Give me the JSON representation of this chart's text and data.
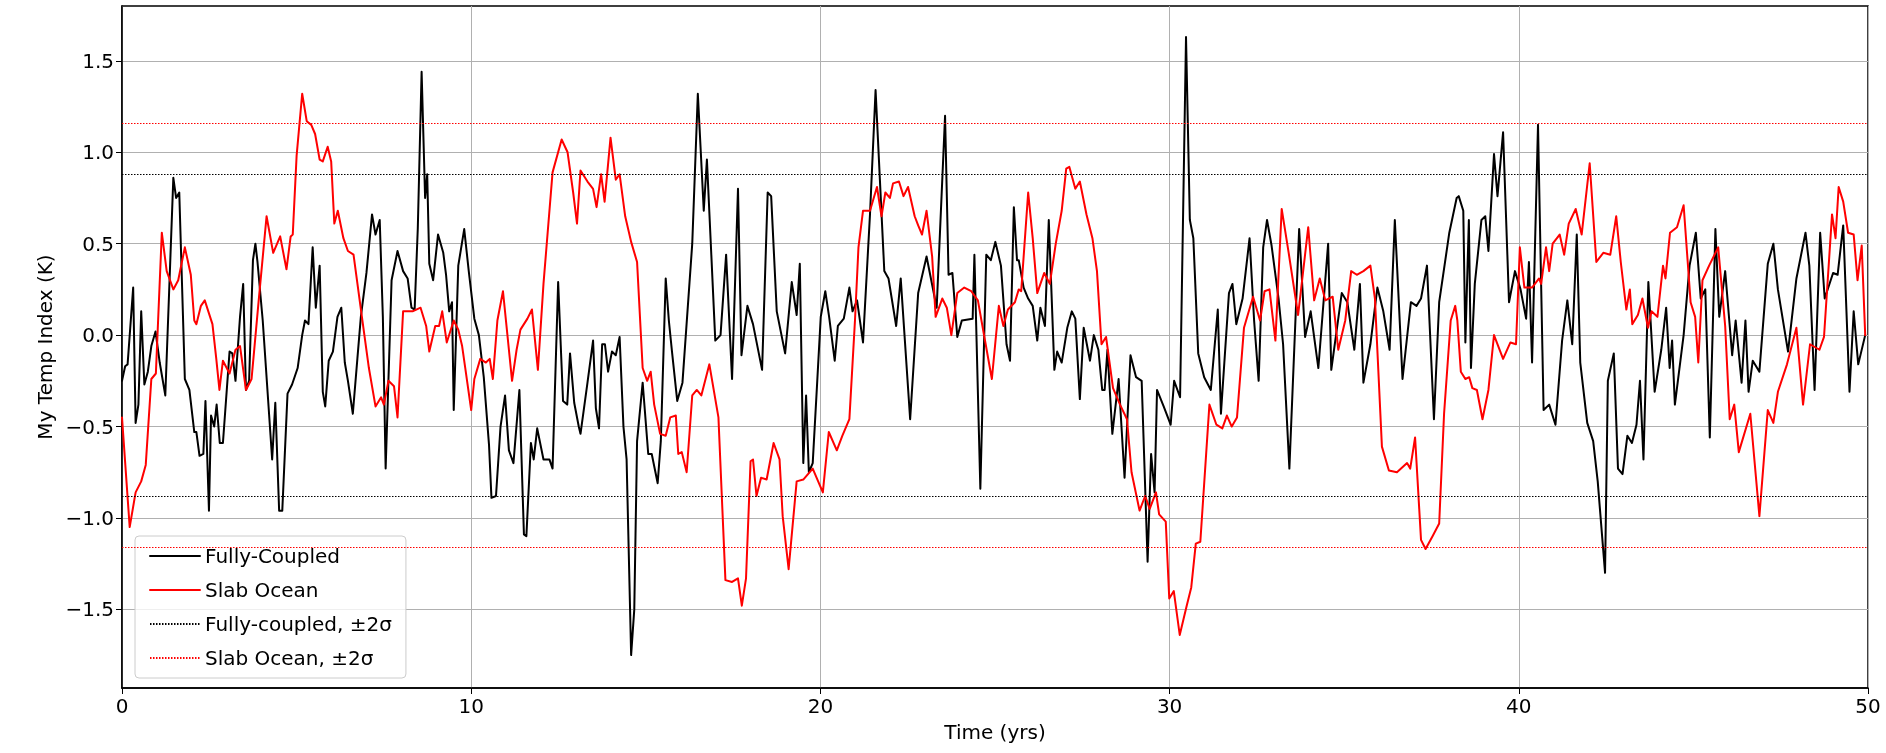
{
  "chart_data": {
    "type": "line",
    "xlabel": "Time (yrs)",
    "ylabel": "My Temp Index (K)",
    "xlim": [
      0,
      50
    ],
    "xticks": [
      0,
      10,
      20,
      30,
      40,
      50
    ],
    "ylim": [
      -1.93,
      1.8
    ],
    "yticks": [
      {
        "value": -1.5,
        "label": "−1.5"
      },
      {
        "value": -1.0,
        "label": "−1.0"
      },
      {
        "value": -0.5,
        "label": "−0.5"
      },
      {
        "value": 0,
        "label": "0.0"
      },
      {
        "value": 0.5,
        "label": "0.5"
      },
      {
        "value": 1.0,
        "label": "1.0"
      },
      {
        "value": 1.5,
        "label": "1.5"
      }
    ],
    "grid": true,
    "legend": "bottom left",
    "marker": "none",
    "line_style": "solid",
    "series": [
      {
        "name": "Fully-Coupled",
        "color": "#000000",
        "x": [
          0,
          0.09,
          0.16,
          0.32,
          0.39,
          0.47,
          0.55,
          0.64,
          0.74,
          0.84,
          0.96,
          1.08,
          1.24,
          1.47,
          1.55,
          1.64,
          1.8,
          1.93,
          2.07,
          2.13,
          2.22,
          2.33,
          2.39,
          2.49,
          2.55,
          2.64,
          2.71,
          2.8,
          2.89,
          3.08,
          3.16,
          3.25,
          3.38,
          3.47,
          3.55,
          3.64,
          3.75,
          3.82,
          3.88,
          4.03,
          4.3,
          4.39,
          4.5,
          4.59,
          4.74,
          4.87,
          5.03,
          5.16,
          5.24,
          5.34,
          5.46,
          5.55,
          5.66,
          5.75,
          5.82,
          5.92,
          6.04,
          6.17,
          6.28,
          6.38,
          6.47,
          6.61,
          6.74,
          6.84,
          7,
          7.16,
          7.26,
          7.38,
          7.47,
          7.55,
          7.72,
          7.89,
          8.05,
          8.18,
          8.29,
          8.38,
          8.47,
          8.58,
          8.68,
          8.74,
          8.8,
          8.91,
          9.05,
          9.2,
          9.28,
          9.37,
          9.45,
          9.5,
          9.63,
          9.8,
          9.93,
          10.09,
          10.22,
          10.36,
          10.51,
          10.58,
          10.71,
          10.84,
          10.97,
          11.08,
          11.21,
          11.38,
          11.51,
          11.58,
          11.71,
          11.79,
          11.89,
          12.07,
          12.24,
          12.33,
          12.49,
          12.63,
          12.75,
          12.83,
          12.95,
          13.08,
          13.13,
          13.33,
          13.49,
          13.57,
          13.66,
          13.75,
          13.83,
          13.92,
          14.03,
          14.14,
          14.25,
          14.36,
          14.45,
          14.58,
          14.67,
          14.75,
          14.91,
          15.07,
          15.17,
          15.34,
          15.43,
          15.57,
          15.66,
          15.75,
          15.9,
          16.05,
          16.33,
          16.49,
          16.66,
          16.75,
          16.99,
          17.14,
          17.3,
          17.47,
          17.64,
          17.74,
          17.91,
          18.07,
          18.33,
          18.49,
          18.59,
          18.75,
          18.99,
          19.18,
          19.32,
          19.41,
          19.51,
          19.59,
          19.67,
          19.78,
          19.91,
          20.01,
          20.14,
          20.25,
          20.41,
          20.5,
          20.67,
          20.83,
          20.92,
          21.05,
          21.22,
          21.42,
          21.58,
          21.83,
          21.95,
          22.17,
          22.3,
          22.57,
          22.8,
          23.04,
          23.33,
          23.57,
          23.67,
          23.78,
          23.92,
          24.05,
          24.36,
          24.41,
          24.58,
          24.75,
          24.88,
          25.01,
          25.17,
          25.33,
          25.43,
          25.54,
          25.63,
          25.68,
          25.82,
          25.95,
          26.08,
          26.21,
          26.3,
          26.43,
          26.54,
          26.7,
          26.78,
          26.91,
          27.07,
          27.2,
          27.3,
          27.43,
          27.54,
          27.72,
          27.83,
          27.96,
          28.07,
          28.14,
          28.22,
          28.36,
          28.54,
          28.71,
          28.88,
          29.04,
          29.2,
          29.37,
          29.47,
          29.57,
          29.64,
          29.83,
          30.03,
          30.13,
          30.3,
          30.47,
          30.58,
          30.68,
          30.82,
          30.99,
          31.18,
          31.38,
          31.47,
          31.7,
          31.8,
          31.91,
          32.09,
          32.29,
          32.42,
          32.55,
          32.68,
          32.79,
          32.92,
          33.12,
          33.25,
          33.43,
          33.71,
          33.88,
          34.04,
          34.26,
          34.54,
          34.63,
          34.93,
          35.09,
          35.29,
          35.45,
          35.55,
          35.75,
          35.95,
          36.12,
          36.3,
          36.45,
          36.67,
          36.91,
          37.07,
          37.2,
          37.37,
          37.57,
          37.72,
          38.01,
          38.22,
          38.28,
          38.41,
          38.47,
          38.57,
          38.63,
          38.74,
          38.93,
          39.04,
          39.13,
          39.29,
          39.39,
          39.55,
          39.72,
          39.89,
          40.05,
          40.21,
          40.29,
          40.38,
          40.55,
          40.71,
          40.87,
          41.05,
          41.24,
          41.39,
          41.53,
          41.66,
          41.76,
          41.96,
          42.13,
          42.26,
          42.47,
          42.55,
          42.72,
          42.84,
          42.97,
          43.11,
          43.24,
          43.37,
          43.47,
          43.57,
          43.71,
          43.89,
          44.08,
          44.22,
          44.32,
          44.39,
          44.47,
          44.72,
          44.89,
          45.07,
          45.21,
          45.34,
          45.47,
          45.63,
          45.74,
          45.91,
          46.11,
          46.21,
          46.38,
          46.49,
          46.58,
          46.7,
          46.89,
          47.13,
          47.29,
          47.42,
          47.71,
          47.95,
          48.21,
          48.32,
          48.47,
          48.63,
          48.76,
          49,
          49.13,
          49.29,
          49.47,
          49.59,
          49.72,
          49.92
        ],
        "values": [
          -0.25,
          -0.17,
          -0.16,
          0.26,
          -0.48,
          -0.38,
          0.13,
          -0.27,
          -0.2,
          -0.06,
          0.02,
          -0.15,
          -0.33,
          0.86,
          0.75,
          0.78,
          -0.24,
          -0.3,
          -0.53,
          -0.53,
          -0.66,
          -0.65,
          -0.36,
          -0.96,
          -0.44,
          -0.5,
          -0.38,
          -0.59,
          -0.59,
          -0.09,
          -0.1,
          -0.25,
          0.1,
          0.28,
          -0.3,
          -0.25,
          0.41,
          0.5,
          0.4,
          0.08,
          -0.68,
          -0.37,
          -0.96,
          -0.96,
          -0.32,
          -0.27,
          -0.18,
          0,
          0.08,
          0.06,
          0.48,
          0.15,
          0.38,
          -0.31,
          -0.39,
          -0.14,
          -0.09,
          0.1,
          0.15,
          -0.15,
          -0.25,
          -0.43,
          -0.13,
          0.1,
          0.34,
          0.66,
          0.55,
          0.63,
          0.1,
          -0.73,
          0.3,
          0.46,
          0.35,
          0.31,
          0.15,
          0.14,
          0.58,
          1.44,
          0.75,
          0.88,
          0.39,
          0.3,
          0.55,
          0.45,
          0.33,
          0.13,
          0.18,
          -0.41,
          0.38,
          0.58,
          0.35,
          0.09,
          0,
          -0.23,
          -0.6,
          -0.89,
          -0.88,
          -0.5,
          -0.33,
          -0.63,
          -0.7,
          -0.3,
          -1.09,
          -1.1,
          -0.59,
          -0.68,
          -0.51,
          -0.68,
          -0.68,
          -0.73,
          0.29,
          -0.36,
          -0.38,
          -0.1,
          -0.37,
          -0.5,
          -0.54,
          -0.26,
          -0.03,
          -0.4,
          -0.51,
          -0.05,
          -0.05,
          -0.2,
          -0.09,
          -0.11,
          -0.01,
          -0.5,
          -0.68,
          -1.75,
          -1.5,
          -0.58,
          -0.26,
          -0.65,
          -0.65,
          -0.81,
          -0.58,
          0.31,
          0.08,
          -0.09,
          -0.36,
          -0.26,
          0.5,
          1.32,
          0.68,
          0.96,
          -0.03,
          0,
          0.44,
          -0.24,
          0.8,
          -0.11,
          0.16,
          0.06,
          -0.19,
          0.78,
          0.76,
          0.13,
          -0.1,
          0.29,
          0.11,
          0.39,
          -0.7,
          -0.33,
          -0.75,
          -0.7,
          -0.25,
          0.1,
          0.24,
          0.1,
          -0.14,
          0.05,
          0.09,
          0.26,
          0.13,
          0.19,
          -0.04,
          0.66,
          1.34,
          0.35,
          0.31,
          0.05,
          0.31,
          -0.46,
          0.23,
          0.43,
          0.15,
          1.2,
          0.33,
          0.34,
          -0.01,
          0.08,
          0.09,
          0.44,
          -0.84,
          0.44,
          0.41,
          0.51,
          0.38,
          -0.05,
          -0.14,
          0.7,
          0.41,
          0.41,
          0.26,
          0.2,
          0.16,
          -0.03,
          0.15,
          0.05,
          0.63,
          -0.19,
          -0.09,
          -0.15,
          0.04,
          0.13,
          0.09,
          -0.35,
          0.04,
          -0.14,
          0,
          -0.08,
          -0.3,
          -0.3,
          -0.08,
          -0.54,
          -0.24,
          -0.78,
          -0.11,
          -0.23,
          -0.25,
          -1.24,
          -0.65,
          -0.86,
          -0.3,
          -0.39,
          -0.49,
          -0.25,
          -0.34,
          1.63,
          0.63,
          0.53,
          -0.1,
          -0.23,
          -0.3,
          0.14,
          -0.43,
          0.23,
          0.28,
          0.06,
          0.2,
          0.53,
          0.08,
          -0.25,
          0.48,
          0.63,
          0.49,
          0.2,
          -0.05,
          -0.73,
          0.58,
          -0.01,
          0.13,
          -0.18,
          0.5,
          -0.19,
          0.23,
          0.18,
          -0.08,
          0.28,
          -0.26,
          -0.05,
          0.26,
          0.13,
          -0.08,
          0.63,
          -0.24,
          0.18,
          0.16,
          0.2,
          0.38,
          -0.46,
          0.18,
          0.56,
          0.75,
          0.76,
          0.68,
          -0.04,
          0.63,
          -0.18,
          0.28,
          0.63,
          0.65,
          0.46,
          0.99,
          0.76,
          1.11,
          0.18,
          0.35,
          0.25,
          0.09,
          0.4,
          -0.15,
          1.15,
          -0.41,
          -0.38,
          -0.49,
          -0.03,
          0.19,
          -0.05,
          0.55,
          -0.15,
          -0.48,
          -0.58,
          -0.8,
          -1.3,
          -0.25,
          -0.1,
          -0.73,
          -0.76,
          -0.55,
          -0.59,
          -0.49,
          -0.25,
          -0.68,
          0.29,
          -0.31,
          -0.08,
          0.15,
          -0.18,
          -0.03,
          -0.38,
          0,
          0.38,
          0.56,
          0.2,
          0.25,
          -0.56,
          0.58,
          0.1,
          0.35,
          -0.11,
          0.08,
          -0.26,
          0.08,
          -0.31,
          -0.14,
          -0.2,
          0.39,
          0.5,
          0.25,
          -0.09,
          0.31,
          0.56,
          0.38,
          -0.3,
          0.56,
          0.2,
          0.34,
          0.33,
          0.6,
          -0.31,
          0.13,
          -0.16,
          0
        ]
      },
      {
        "name": "Slab Ocean",
        "color": "#ff0000",
        "x": [
          0,
          0.22,
          0.39,
          0.55,
          0.68,
          0.84,
          0.97,
          1.14,
          1.28,
          1.47,
          1.61,
          1.8,
          1.97,
          2.07,
          2.13,
          2.26,
          2.37,
          2.59,
          2.7,
          2.79,
          2.89,
          3.08,
          3.25,
          3.38,
          3.55,
          3.71,
          3.91,
          4.14,
          4.33,
          4.53,
          4.71,
          4.83,
          4.89,
          5,
          5.16,
          5.29,
          5.42,
          5.53,
          5.66,
          5.75,
          5.89,
          5.99,
          6.08,
          6.18,
          6.34,
          6.47,
          6.63,
          6.87,
          7.07,
          7.26,
          7.42,
          7.5,
          7.63,
          7.79,
          7.89,
          8.05,
          8.32,
          8.55,
          8.71,
          8.8,
          8.97,
          9.08,
          9.17,
          9.3,
          9.5,
          9.63,
          9.74,
          9.83,
          10,
          10.09,
          10.26,
          10.42,
          10.53,
          10.62,
          10.75,
          10.91,
          11.17,
          11.3,
          11.41,
          11.61,
          11.74,
          11.91,
          12.07,
          12.33,
          12.59,
          12.76,
          12.92,
          13.03,
          13.13,
          13.33,
          13.49,
          13.59,
          13.72,
          13.82,
          13.99,
          14.14,
          14.25,
          14.41,
          14.58,
          14.75,
          14.91,
          15.04,
          15.14,
          15.24,
          15.41,
          15.57,
          15.7,
          15.86,
          15.93,
          16.03,
          16.17,
          16.33,
          16.46,
          16.59,
          16.82,
          17.08,
          17.28,
          17.47,
          17.64,
          17.75,
          17.87,
          18,
          18.07,
          18.17,
          18.3,
          18.46,
          18.66,
          18.83,
          18.92,
          19.09,
          19.32,
          19.51,
          19.78,
          20.07,
          20.24,
          20.47,
          20.63,
          20.83,
          20.99,
          21.09,
          21.22,
          21.42,
          21.62,
          21.75,
          21.86,
          21.99,
          22.08,
          22.25,
          22.38,
          22.51,
          22.7,
          22.8,
          22.91,
          23.04,
          23.2,
          23.3,
          23.49,
          23.62,
          23.75,
          23.92,
          24.12,
          24.32,
          24.51,
          24.64,
          24.91,
          25.11,
          25.24,
          25.37,
          25.57,
          25.68,
          25.75,
          25.95,
          26.08,
          26.21,
          26.41,
          26.57,
          26.74,
          26.91,
          27.04,
          27.13,
          27.3,
          27.43,
          27.62,
          27.79,
          27.92,
          28.05,
          28.18,
          28.38,
          28.58,
          28.78,
          28.91,
          29.14,
          29.3,
          29.43,
          29.61,
          29.7,
          29.89,
          29.99,
          30.12,
          30.29,
          30.49,
          30.62,
          30.75,
          30.88,
          31.14,
          31.34,
          31.51,
          31.64,
          31.78,
          31.93,
          32.13,
          32.39,
          32.59,
          32.72,
          32.86,
          33.03,
          33.21,
          33.41,
          33.68,
          33.97,
          34.14,
          34.3,
          34.46,
          34.67,
          34.83,
          35.03,
          35.2,
          35.36,
          35.55,
          35.75,
          35.88,
          36.08,
          36.28,
          36.51,
          36.8,
          36.89,
          37.03,
          37.2,
          37.33,
          37.53,
          37.72,
          37.86,
          38.05,
          38.18,
          38.24,
          38.34,
          38.47,
          38.58,
          38.67,
          38.8,
          38.96,
          39.13,
          39.29,
          39.55,
          39.76,
          39.92,
          40.03,
          40.16,
          40.38,
          40.58,
          40.64,
          40.78,
          40.87,
          40.97,
          41.17,
          41.3,
          41.43,
          41.63,
          41.8,
          42.03,
          42.22,
          42.42,
          42.62,
          42.79,
          42.92,
          43.08,
          43.18,
          43.25,
          43.41,
          43.54,
          43.7,
          43.8,
          43.97,
          44.13,
          44.2,
          44.33,
          44.53,
          44.72,
          44.92,
          45.05,
          45.14,
          45.26,
          45.45,
          45.71,
          45.91,
          46.04,
          46.17,
          46.3,
          46.63,
          46.89,
          47.13,
          47.29,
          47.42,
          47.68,
          47.95,
          48.14,
          48.34,
          48.61,
          48.74,
          48.97,
          49.07,
          49.16,
          49.29,
          49.43,
          49.59,
          49.7,
          49.82,
          49.92
        ],
        "values": [
          -0.45,
          -1.05,
          -0.86,
          -0.8,
          -0.71,
          -0.24,
          -0.21,
          0.56,
          0.35,
          0.25,
          0.3,
          0.48,
          0.33,
          0.08,
          0.06,
          0.16,
          0.19,
          0.06,
          -0.13,
          -0.3,
          -0.14,
          -0.21,
          -0.08,
          -0.06,
          -0.3,
          -0.24,
          0.18,
          0.65,
          0.45,
          0.54,
          0.36,
          0.54,
          0.55,
          0.98,
          1.32,
          1.17,
          1.15,
          1.1,
          0.96,
          0.95,
          1.03,
          0.95,
          0.61,
          0.68,
          0.53,
          0.46,
          0.44,
          0.1,
          -0.18,
          -0.39,
          -0.34,
          -0.38,
          -0.25,
          -0.28,
          -0.45,
          0.13,
          0.13,
          0.15,
          0.05,
          -0.09,
          0.05,
          0.05,
          0.13,
          -0.04,
          0.08,
          0.03,
          -0.06,
          -0.18,
          -0.41,
          -0.24,
          -0.13,
          -0.15,
          -0.13,
          -0.24,
          0.08,
          0.24,
          -0.25,
          -0.08,
          0.03,
          0.09,
          0.14,
          -0.19,
          0.28,
          0.89,
          1.07,
          1,
          0.78,
          0.61,
          0.9,
          0.84,
          0.8,
          0.7,
          0.88,
          0.73,
          1.08,
          0.85,
          0.88,
          0.65,
          0.51,
          0.4,
          -0.18,
          -0.25,
          -0.2,
          -0.38,
          -0.54,
          -0.55,
          -0.45,
          -0.44,
          -0.65,
          -0.64,
          -0.75,
          -0.33,
          -0.3,
          -0.33,
          -0.16,
          -0.45,
          -1.34,
          -1.35,
          -1.33,
          -1.48,
          -1.33,
          -0.69,
          -0.68,
          -0.88,
          -0.78,
          -0.79,
          -0.59,
          -0.68,
          -0.99,
          -1.28,
          -0.8,
          -0.79,
          -0.73,
          -0.86,
          -0.53,
          -0.63,
          -0.55,
          -0.46,
          0.08,
          0.48,
          0.68,
          0.68,
          0.81,
          0.65,
          0.78,
          0.75,
          0.83,
          0.84,
          0.76,
          0.81,
          0.65,
          0.6,
          0.55,
          0.68,
          0.43,
          0.1,
          0.2,
          0.15,
          0,
          0.23,
          0.26,
          0.24,
          0.19,
          0.05,
          -0.24,
          0.16,
          0.05,
          0.14,
          0.18,
          0.25,
          0.24,
          0.78,
          0.53,
          0.23,
          0.34,
          0.28,
          0.5,
          0.68,
          0.91,
          0.92,
          0.8,
          0.84,
          0.66,
          0.53,
          0.35,
          -0.05,
          -0.01,
          -0.29,
          -0.38,
          -0.46,
          -0.75,
          -0.96,
          -0.88,
          -0.95,
          -0.86,
          -0.98,
          -1.02,
          -1.44,
          -1.4,
          -1.64,
          -1.48,
          -1.38,
          -1.14,
          -1.13,
          -0.38,
          -0.49,
          -0.51,
          -0.44,
          -0.5,
          -0.45,
          0.04,
          0.21,
          0.08,
          0.24,
          0.25,
          -0.03,
          0.69,
          0.45,
          0.11,
          0.59,
          0.19,
          0.31,
          0.19,
          0.21,
          -0.08,
          0.08,
          0.35,
          0.33,
          0.35,
          0.38,
          0.2,
          -0.61,
          -0.74,
          -0.75,
          -0.7,
          -0.73,
          -0.56,
          -1.12,
          -1.17,
          -1.1,
          -1.03,
          -0.43,
          0.08,
          0.16,
          0.08,
          -0.2,
          -0.24,
          -0.23,
          -0.29,
          -0.3,
          -0.46,
          -0.3,
          0,
          -0.13,
          -0.04,
          -0.05,
          0.48,
          0.26,
          0.26,
          0.31,
          0.28,
          0.48,
          0.35,
          0.5,
          0.55,
          0.44,
          0.61,
          0.69,
          0.55,
          0.94,
          0.4,
          0.45,
          0.44,
          0.65,
          0.4,
          0.14,
          0.25,
          0.06,
          0.11,
          0.2,
          0.04,
          0.13,
          0.1,
          0.38,
          0.31,
          0.56,
          0.59,
          0.71,
          0.18,
          0.1,
          -0.15,
          0.3,
          0.38,
          0.48,
          0.05,
          -0.46,
          -0.38,
          -0.64,
          -0.43,
          -0.99,
          -0.41,
          -0.48,
          -0.31,
          -0.16,
          0.04,
          -0.38,
          -0.05,
          -0.08,
          -0.01,
          0.66,
          0.53,
          0.81,
          0.73,
          0.56,
          0.55,
          0.3,
          0.49,
          0
        ]
      }
    ],
    "ref_lines": [
      {
        "axis": "y",
        "value": 0.88,
        "label": "Fully-coupled, ±2σ",
        "color": "#000000",
        "line_style": "dotted"
      },
      {
        "axis": "y",
        "value": -0.88,
        "color": "#000000",
        "line_style": "dotted"
      },
      {
        "axis": "y",
        "value": 1.16,
        "label": "Slab Ocean, ±2σ",
        "color": "#ff0000",
        "line_style": "dotted"
      },
      {
        "axis": "y",
        "value": -1.16,
        "color": "#ff0000",
        "line_style": "dotted"
      }
    ]
  }
}
